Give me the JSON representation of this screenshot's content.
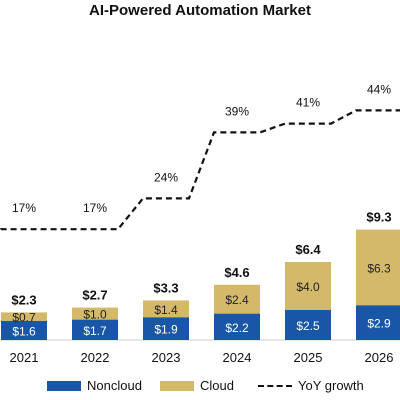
{
  "title": "AI-Powered Automation Market",
  "colors": {
    "noncloud": "#1a56a8",
    "cloud": "#d4b96a",
    "line": "#111111"
  },
  "legend": {
    "noncloud": "Noncloud",
    "cloud": "Cloud",
    "growth": "YoY growth"
  },
  "chart_data": {
    "type": "bar",
    "stacked": true,
    "title": "AI-Powered Automation Market",
    "categories": [
      "2021",
      "2022",
      "2023",
      "2024",
      "2025",
      "2026"
    ],
    "series": [
      {
        "name": "Noncloud",
        "values": [
          1.6,
          1.7,
          1.9,
          2.2,
          2.5,
          2.9
        ],
        "labels": [
          "$1.6",
          "$1.7",
          "$1.9",
          "$2.2",
          "$2.5",
          "$2.9"
        ]
      },
      {
        "name": "Cloud",
        "values": [
          0.7,
          1.0,
          1.4,
          2.4,
          4.0,
          6.3
        ],
        "labels": [
          "$0.7",
          "$1.0",
          "$1.4",
          "$2.4",
          "$4.0",
          "$6.3"
        ]
      }
    ],
    "totals": [
      2.3,
      2.7,
      3.3,
      4.6,
      6.4,
      9.3
    ],
    "total_labels": [
      "$2.3",
      "$2.7",
      "$3.3",
      "$4.6",
      "$6.4",
      "$9.3"
    ],
    "line_series": {
      "name": "YoY growth",
      "values": [
        17,
        17,
        24,
        39,
        41,
        44
      ],
      "labels": [
        "17%",
        "17%",
        "24%",
        "39%",
        "41%",
        "44%"
      ],
      "style": "dashed"
    },
    "legend_position": "bottom",
    "grid": false
  }
}
